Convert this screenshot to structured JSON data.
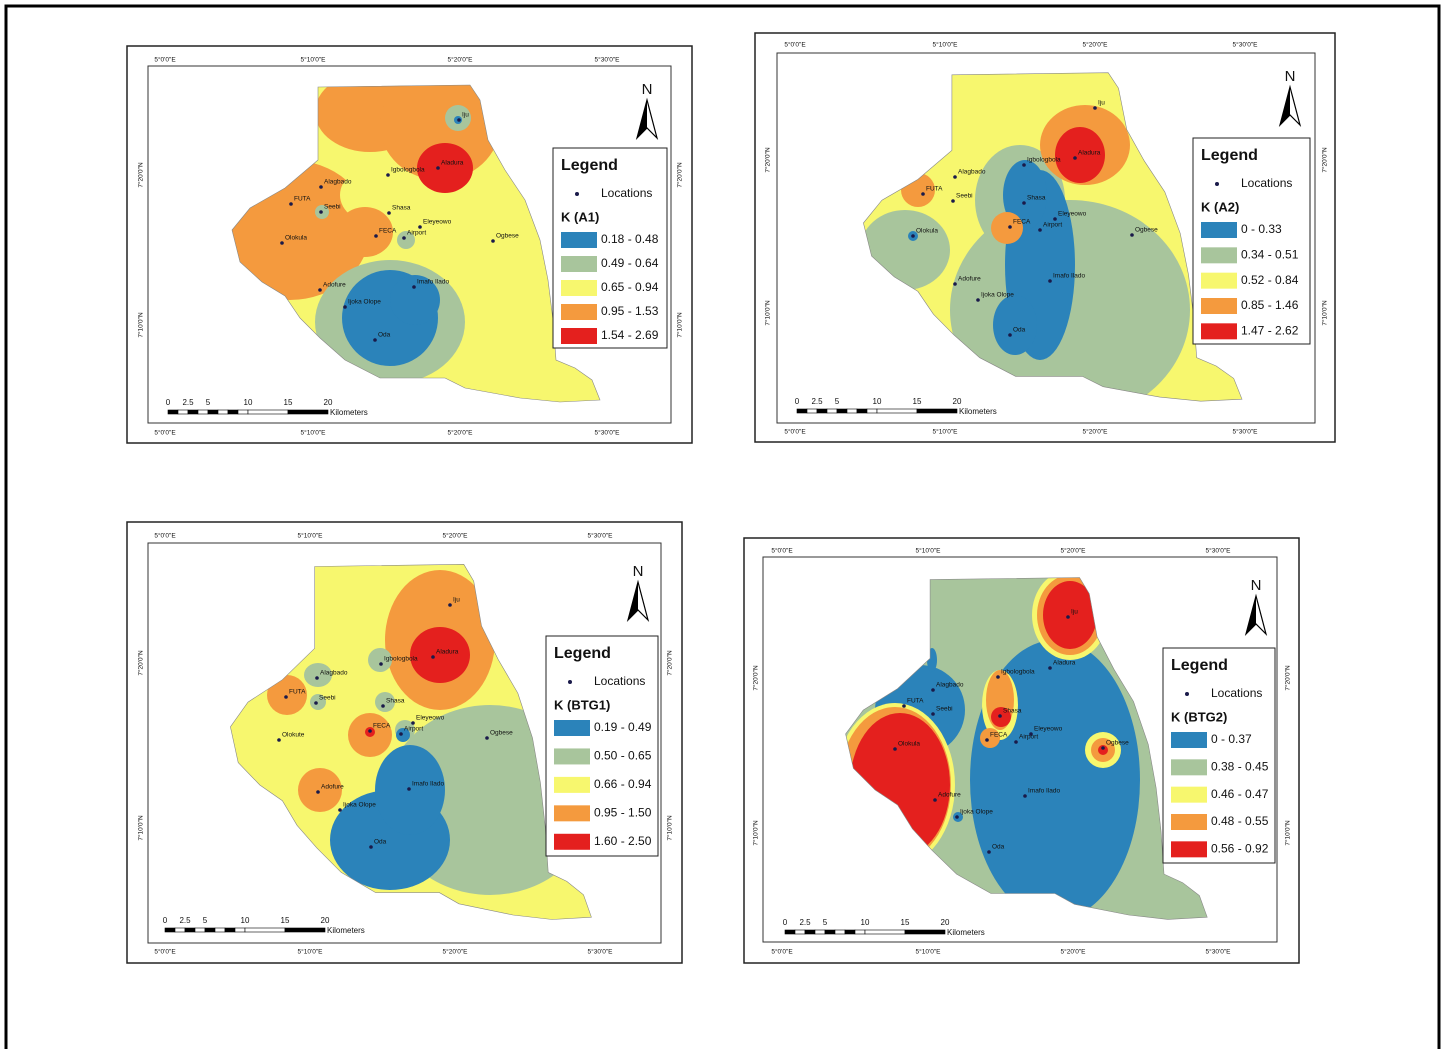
{
  "figure": {
    "graticule": {
      "lon": [
        "5°0'0\"E",
        "5°10'0\"E",
        "5°20'0\"E",
        "5°30'0\"E"
      ],
      "lat": [
        "7°20'0\"N",
        "7°10'0\"N"
      ]
    },
    "scale_bar": {
      "ticks": [
        "0",
        "2.5",
        "5",
        "10",
        "15",
        "20"
      ],
      "unit": "Kilometers"
    },
    "north": "N",
    "legend_title": "Legend",
    "locations_label": "Locations",
    "panels": [
      {
        "k_title": "K (A1)",
        "classes": [
          {
            "label": "0.18 - 0.48",
            "color": "#2b83ba"
          },
          {
            "label": "0.49 - 0.64",
            "color": "#a8c59c"
          },
          {
            "label": "0.65 - 0.94",
            "color": "#f7f76e"
          },
          {
            "label": "0.95 - 1.53",
            "color": "#f49a3e"
          },
          {
            "label": "1.54 - 2.69",
            "color": "#e4201e"
          }
        ],
        "locations": [
          "Iju",
          "Aladura",
          "Igbologbola",
          "Alagbado",
          "FUTA",
          "Seebi",
          "Shasa",
          "Eleyeowo",
          "Airport",
          "FECA",
          "Olokula",
          "Ogbese",
          "Adofure",
          "Imafo Ilado",
          "Ijoka Olope",
          "Oda"
        ]
      },
      {
        "k_title": "K (A2)",
        "classes": [
          {
            "label": "0 - 0.33",
            "color": "#2b83ba"
          },
          {
            "label": "0.34 - 0.51",
            "color": "#a8c59c"
          },
          {
            "label": "0.52 - 0.84",
            "color": "#f7f76e"
          },
          {
            "label": "0.85 - 1.46",
            "color": "#f49a3e"
          },
          {
            "label": "1.47 - 2.62",
            "color": "#e4201e"
          }
        ],
        "locations": [
          "Iju",
          "Aladura",
          "Igbologbola",
          "Alagbado",
          "FUTA",
          "Seebi",
          "Shasa",
          "Eleyeowo",
          "Airport",
          "FECA",
          "Olokula",
          "Ogbese",
          "Adofure",
          "Imafo Ilado",
          "Ijoka Olope",
          "Oda"
        ]
      },
      {
        "k_title": "K (BTG1)",
        "classes": [
          {
            "label": "0.19 - 0.49",
            "color": "#2b83ba"
          },
          {
            "label": "0.50 - 0.65",
            "color": "#a8c59c"
          },
          {
            "label": "0.66 - 0.94",
            "color": "#f7f76e"
          },
          {
            "label": "0.95 - 1.50",
            "color": "#f49a3e"
          },
          {
            "label": "1.60 - 2.50",
            "color": "#e4201e"
          }
        ],
        "locations": [
          "Iju",
          "Aladura",
          "Igbologbola",
          "Alagbado",
          "FUTA",
          "Seebi",
          "Shasa",
          "Eleyeowo",
          "Airport",
          "FECA",
          "Olokute",
          "Ogbese",
          "Adofure",
          "Imafo Ilado",
          "Ijoka Olope",
          "Oda"
        ]
      },
      {
        "k_title": "K (BTG2)",
        "classes": [
          {
            "label": "0 - 0.37",
            "color": "#2b83ba"
          },
          {
            "label": "0.38 - 0.45",
            "color": "#a8c59c"
          },
          {
            "label": "0.46 - 0.47",
            "color": "#f7f76e"
          },
          {
            "label": "0.48 - 0.55",
            "color": "#f49a3e"
          },
          {
            "label": "0.56 - 0.92",
            "color": "#e4201e"
          }
        ],
        "locations": [
          "Iju",
          "Aladura",
          "Igbologbola",
          "Alagbado",
          "FUTA",
          "Seebi",
          "Shasa",
          "Eleyeowo",
          "Airport",
          "FECA",
          "Olokula",
          "Ogbese",
          "Adofure",
          "Imafo Ilado",
          "Ijoka Olope",
          "Oda"
        ]
      }
    ]
  }
}
